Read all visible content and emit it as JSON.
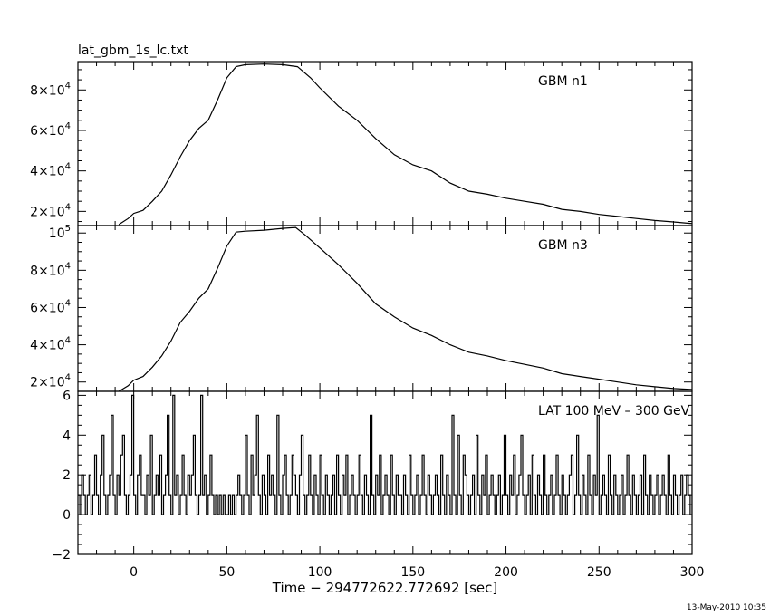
{
  "header": {
    "file_label": "lat_gbm_1s_lc.txt"
  },
  "footer": {
    "timestamp": "13-May-2010 10:35"
  },
  "chart_data": {
    "type": "line",
    "xlabel": "Time − 294772622.772692 [sec]",
    "xlim": [
      -30,
      300
    ],
    "xticks": [
      0,
      50,
      100,
      150,
      200,
      250,
      300
    ],
    "xtick_labels": [
      "0",
      "50",
      "100",
      "150",
      "200",
      "250",
      "300"
    ],
    "grid": false,
    "panels": [
      {
        "label": "GBM n1",
        "ylim": [
          13000,
          94000
        ],
        "yticks": [
          {
            "value": 20000,
            "mantissa": "2×10",
            "exp": "4"
          },
          {
            "value": 40000,
            "mantissa": "4×10",
            "exp": "4"
          },
          {
            "value": 60000,
            "mantissa": "6×10",
            "exp": "4"
          },
          {
            "value": 80000,
            "mantissa": "8×10",
            "exp": "4"
          }
        ],
        "series": [
          {
            "points": [
              [
                -8,
                13500
              ],
              [
                -3,
                16500
              ],
              [
                0,
                19000
              ],
              [
                5,
                20500
              ],
              [
                10,
                25000
              ],
              [
                15,
                30000
              ],
              [
                20,
                38000
              ],
              [
                25,
                47000
              ],
              [
                30,
                55000
              ],
              [
                35,
                61000
              ],
              [
                40,
                65000
              ],
              [
                45,
                75000
              ],
              [
                50,
                86000
              ],
              [
                55,
                91500
              ],
              [
                60,
                92500
              ],
              [
                70,
                92800
              ],
              [
                80,
                92500
              ],
              [
                88,
                91500
              ],
              [
                95,
                86000
              ],
              [
                100,
                81000
              ],
              [
                110,
                72000
              ],
              [
                120,
                65000
              ],
              [
                130,
                56000
              ],
              [
                140,
                48000
              ],
              [
                150,
                43000
              ],
              [
                160,
                40000
              ],
              [
                170,
                34000
              ],
              [
                180,
                30000
              ],
              [
                190,
                28500
              ],
              [
                200,
                26500
              ],
              [
                210,
                25000
              ],
              [
                220,
                23500
              ],
              [
                230,
                21000
              ],
              [
                240,
                20000
              ],
              [
                250,
                18500
              ],
              [
                260,
                17500
              ],
              [
                270,
                16500
              ],
              [
                280,
                15500
              ],
              [
                290,
                14800
              ],
              [
                300,
                14000
              ]
            ]
          }
        ]
      },
      {
        "label": "GBM n3",
        "ylim": [
          15000,
          104000
        ],
        "yticks": [
          {
            "value": 20000,
            "mantissa": "2×10",
            "exp": "4"
          },
          {
            "value": 40000,
            "mantissa": "4×10",
            "exp": "4"
          },
          {
            "value": 60000,
            "mantissa": "6×10",
            "exp": "4"
          },
          {
            "value": 80000,
            "mantissa": "8×10",
            "exp": "4"
          },
          {
            "value": 100000,
            "mantissa": "10",
            "exp": "5"
          }
        ],
        "series": [
          {
            "points": [
              [
                -8,
                15000
              ],
              [
                -3,
                18000
              ],
              [
                0,
                21000
              ],
              [
                5,
                23000
              ],
              [
                10,
                28000
              ],
              [
                15,
                34000
              ],
              [
                20,
                42000
              ],
              [
                25,
                52000
              ],
              [
                30,
                58000
              ],
              [
                35,
                65000
              ],
              [
                40,
                70000
              ],
              [
                45,
                81000
              ],
              [
                50,
                93000
              ],
              [
                55,
                100500
              ],
              [
                60,
                101000
              ],
              [
                70,
                101500
              ],
              [
                80,
                102500
              ],
              [
                87,
                103000
              ],
              [
                92,
                99000
              ],
              [
                100,
                92000
              ],
              [
                110,
                83000
              ],
              [
                120,
                73000
              ],
              [
                130,
                62000
              ],
              [
                140,
                55000
              ],
              [
                150,
                49000
              ],
              [
                160,
                45000
              ],
              [
                170,
                40000
              ],
              [
                180,
                36000
              ],
              [
                190,
                34000
              ],
              [
                200,
                31500
              ],
              [
                210,
                29500
              ],
              [
                220,
                27500
              ],
              [
                230,
                24500
              ],
              [
                240,
                23000
              ],
              [
                250,
                21500
              ],
              [
                260,
                20000
              ],
              [
                270,
                18500
              ],
              [
                280,
                17500
              ],
              [
                290,
                16500
              ],
              [
                300,
                16000
              ]
            ]
          }
        ]
      },
      {
        "label": "LAT 100 MeV – 300 GeV",
        "ylim": [
          -2,
          6.2
        ],
        "yticks": [
          {
            "value": -2,
            "text": "−2"
          },
          {
            "value": 0,
            "text": "0"
          },
          {
            "value": 2,
            "text": "2"
          },
          {
            "value": 4,
            "text": "4"
          },
          {
            "value": 6,
            "text": "6"
          }
        ],
        "series": [
          {
            "x_start": -30,
            "x_step": 1,
            "counts": [
              1,
              0,
              2,
              1,
              0,
              1,
              2,
              0,
              1,
              3,
              1,
              0,
              2,
              4,
              1,
              0,
              1,
              2,
              5,
              1,
              0,
              2,
              1,
              3,
              4,
              1,
              0,
              1,
              2,
              6,
              1,
              0,
              2,
              3,
              1,
              1,
              0,
              2,
              1,
              4,
              0,
              1,
              2,
              1,
              3,
              0,
              1,
              2,
              5,
              1,
              0,
              6,
              1,
              2,
              0,
              1,
              3,
              1,
              0,
              2,
              1,
              2,
              4,
              1,
              0,
              1,
              6,
              1,
              2,
              0,
              1,
              3,
              1,
              0,
              1,
              0,
              1,
              0,
              1,
              0,
              0,
              1,
              0,
              1,
              0,
              1,
              2,
              1,
              0,
              1,
              4,
              1,
              0,
              3,
              1,
              2,
              5,
              1,
              0,
              2,
              1,
              0,
              3,
              1,
              2,
              1,
              0,
              5,
              1,
              0,
              2,
              3,
              1,
              0,
              1,
              3,
              2,
              1,
              0,
              2,
              4,
              1,
              0,
              1,
              3,
              1,
              0,
              2,
              1,
              0,
              3,
              1,
              0,
              2,
              1,
              0,
              1,
              2,
              0,
              3,
              1,
              0,
              2,
              1,
              3,
              0,
              1,
              2,
              1,
              0,
              1,
              3,
              1,
              0,
              2,
              1,
              0,
              5,
              1,
              0,
              2,
              1,
              3,
              0,
              1,
              2,
              1,
              0,
              3,
              1,
              0,
              2,
              1,
              1,
              0,
              2,
              1,
              0,
              3,
              1,
              0,
              1,
              2,
              0,
              1,
              3,
              1,
              0,
              2,
              1,
              0,
              1,
              2,
              1,
              0,
              3,
              1,
              0,
              2,
              1,
              0,
              5,
              1,
              0,
              4,
              1,
              0,
              3,
              2,
              1,
              0,
              1,
              2,
              0,
              4,
              1,
              0,
              2,
              1,
              3,
              0,
              1,
              2,
              1,
              0,
              1,
              2,
              0,
              1,
              4,
              1,
              0,
              2,
              1,
              3,
              0,
              1,
              2,
              4,
              1,
              0,
              1,
              2,
              0,
              3,
              1,
              0,
              2,
              1,
              0,
              3,
              1,
              0,
              1,
              2,
              0,
              1,
              3,
              1,
              0,
              2,
              1,
              0,
              1,
              2,
              3,
              0,
              1,
              4,
              1,
              0,
              2,
              1,
              0,
              3,
              1,
              0,
              2,
              1,
              5,
              0,
              1,
              2,
              1,
              0,
              3,
              1,
              0,
              2,
              1,
              0,
              1,
              2,
              0,
              1,
              3,
              1,
              0,
              2,
              1,
              0,
              1,
              2,
              0,
              3,
              1,
              0,
              2,
              1,
              0,
              1,
              2,
              0,
              1,
              2,
              1,
              0,
              3,
              1,
              0,
              2,
              1,
              0,
              1,
              2,
              0,
              1,
              2,
              1,
              0,
              2,
              1,
              0,
              1,
              2,
              0,
              1,
              2,
              1,
              0,
              2,
              1
            ]
          }
        ]
      }
    ]
  }
}
